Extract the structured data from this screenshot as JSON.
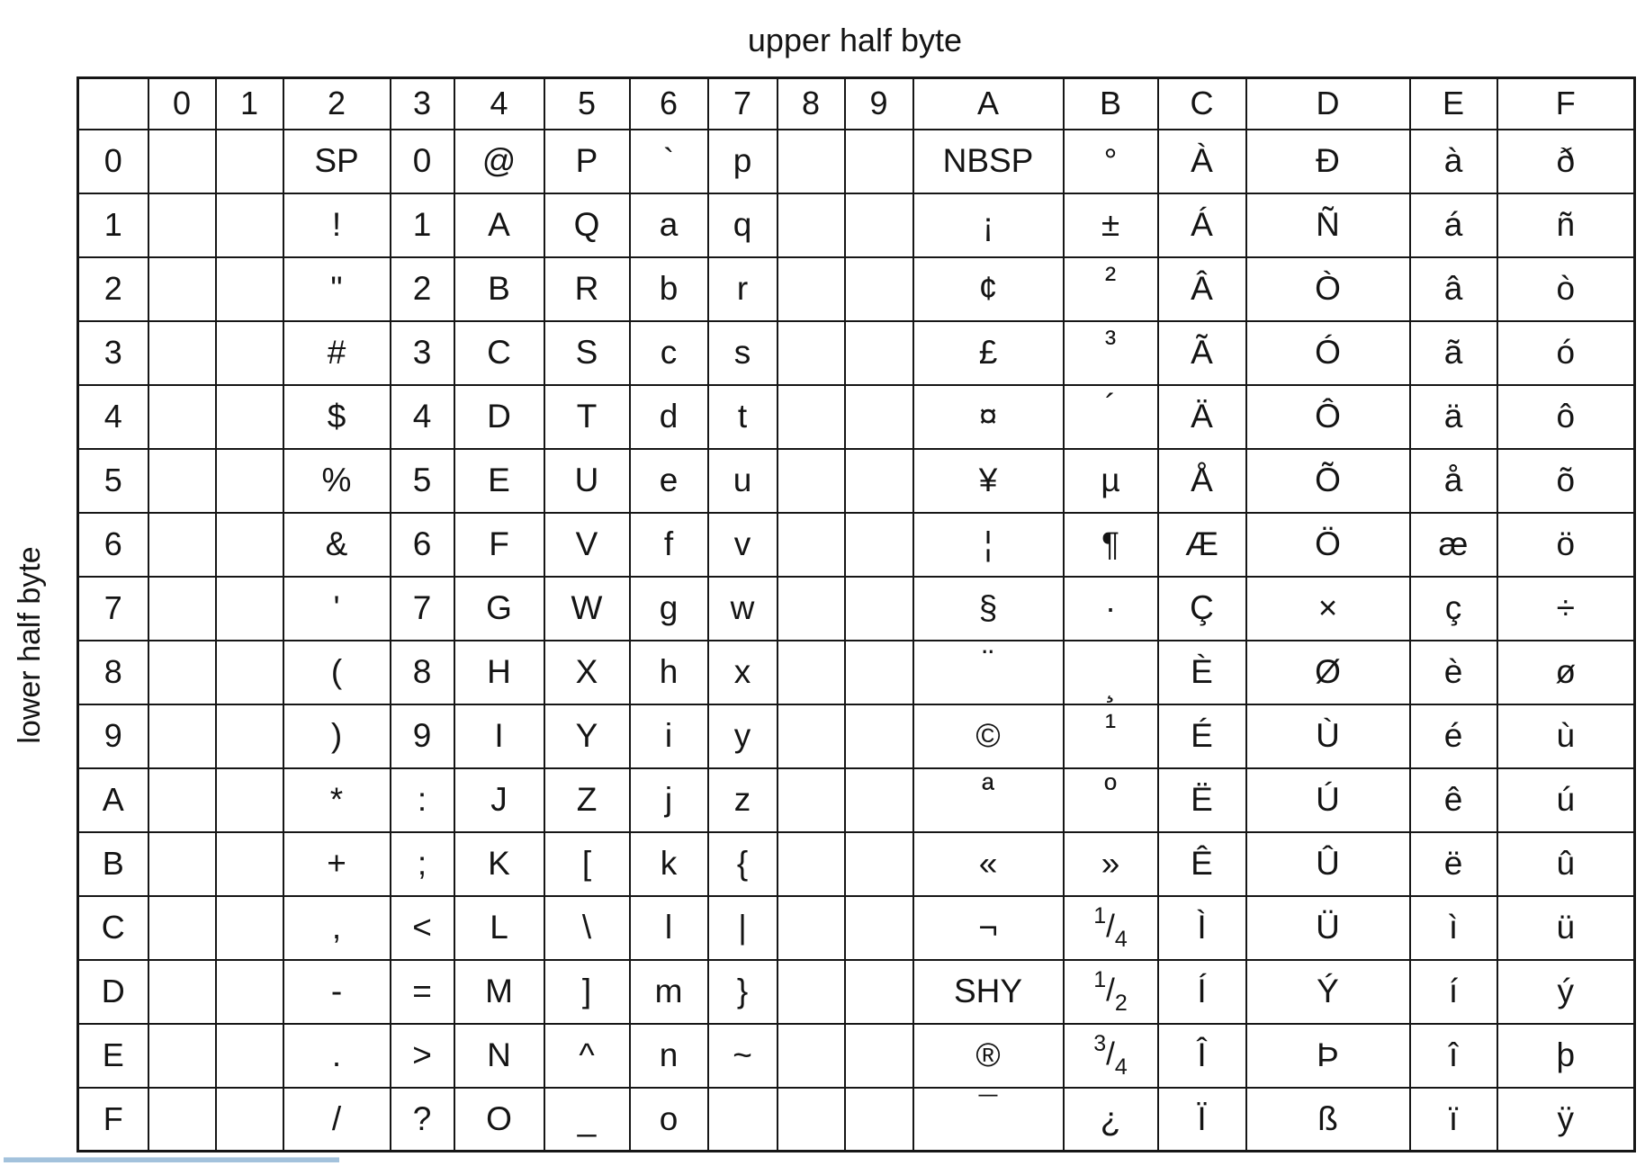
{
  "labels": {
    "upper": "upper half byte",
    "lower": "lower half byte"
  },
  "colors": {
    "text": "#141414",
    "border": "#161616",
    "underline": "#a3c2dc",
    "background": "#ffffff"
  },
  "table": {
    "corner": "",
    "col_headers": [
      "0",
      "1",
      "2",
      "3",
      "4",
      "5",
      "6",
      "7",
      "8",
      "9",
      "A",
      "B",
      "C",
      "D",
      "E",
      "F"
    ],
    "row_headers": [
      "0",
      "1",
      "2",
      "3",
      "4",
      "5",
      "6",
      "7",
      "8",
      "9",
      "A",
      "B",
      "C",
      "D",
      "E",
      "F"
    ],
    "special_labels": [
      "SP",
      "NBSP",
      "SHY"
    ],
    "grid": [
      [
        "",
        "",
        "SP",
        "0",
        "@",
        "P",
        "`",
        "p",
        "",
        "",
        "NBSP",
        "°",
        "À",
        "Ð",
        "à",
        "ð"
      ],
      [
        "",
        "",
        "!",
        "1",
        "A",
        "Q",
        "a",
        "q",
        "",
        "",
        "¡",
        "±",
        "Á",
        "Ñ",
        "á",
        "ñ"
      ],
      [
        "",
        "",
        "\"",
        "2",
        "B",
        "R",
        "b",
        "r",
        "",
        "",
        "¢",
        "²",
        "Â",
        "Ò",
        "â",
        "ò"
      ],
      [
        "",
        "",
        "#",
        "3",
        "C",
        "S",
        "c",
        "s",
        "",
        "",
        "£",
        "³",
        "Ã",
        "Ó",
        "ã",
        "ó"
      ],
      [
        "",
        "",
        "$",
        "4",
        "D",
        "T",
        "d",
        "t",
        "",
        "",
        "¤",
        "´",
        "Ä",
        "Ô",
        "ä",
        "ô"
      ],
      [
        "",
        "",
        "%",
        "5",
        "E",
        "U",
        "e",
        "u",
        "",
        "",
        "¥",
        "µ",
        "Å",
        "Õ",
        "å",
        "õ"
      ],
      [
        "",
        "",
        "&",
        "6",
        "F",
        "V",
        "f",
        "v",
        "",
        "",
        "¦",
        "¶",
        "Æ",
        "Ö",
        "æ",
        "ö"
      ],
      [
        "",
        "",
        "'",
        "7",
        "G",
        "W",
        "g",
        "w",
        "",
        "",
        "§",
        "·",
        "Ç",
        "×",
        "ç",
        "÷"
      ],
      [
        "",
        "",
        "(",
        "8",
        "H",
        "X",
        "h",
        "x",
        "",
        "",
        "¨",
        "¸",
        "È",
        "Ø",
        "è",
        "ø"
      ],
      [
        "",
        "",
        ")",
        "9",
        "I",
        "Y",
        "i",
        "y",
        "",
        "",
        "©",
        "¹",
        "É",
        "Ù",
        "é",
        "ù"
      ],
      [
        "",
        "",
        "*",
        ":",
        "J",
        "Z",
        "j",
        "z",
        "",
        "",
        "ª",
        "º",
        "Ë",
        "Ú",
        "ê",
        "ú"
      ],
      [
        "",
        "",
        "+",
        ";",
        "K",
        "[",
        "k",
        "{",
        "",
        "",
        "«",
        "»",
        "Ê",
        "Û",
        "ë",
        "û"
      ],
      [
        "",
        "",
        ",",
        "<",
        "L",
        "\\",
        "l",
        "|",
        "",
        "",
        "¬",
        "1/4",
        "Ì",
        "Ü",
        "ì",
        "ü"
      ],
      [
        "",
        "",
        "-",
        "=",
        "M",
        "]",
        "m",
        "}",
        "",
        "",
        "SHY",
        "1/2",
        "Í",
        "Ý",
        "í",
        "ý"
      ],
      [
        "",
        "",
        ".",
        ">",
        "N",
        "^",
        "n",
        "~",
        "",
        "",
        "®",
        "3/4",
        "Î",
        "Þ",
        "î",
        "þ"
      ],
      [
        "",
        "",
        "/",
        "?",
        "O",
        "_",
        "o",
        "",
        "",
        "",
        "¯",
        "¿",
        "Ï",
        "ß",
        "ï",
        "ÿ"
      ]
    ]
  }
}
